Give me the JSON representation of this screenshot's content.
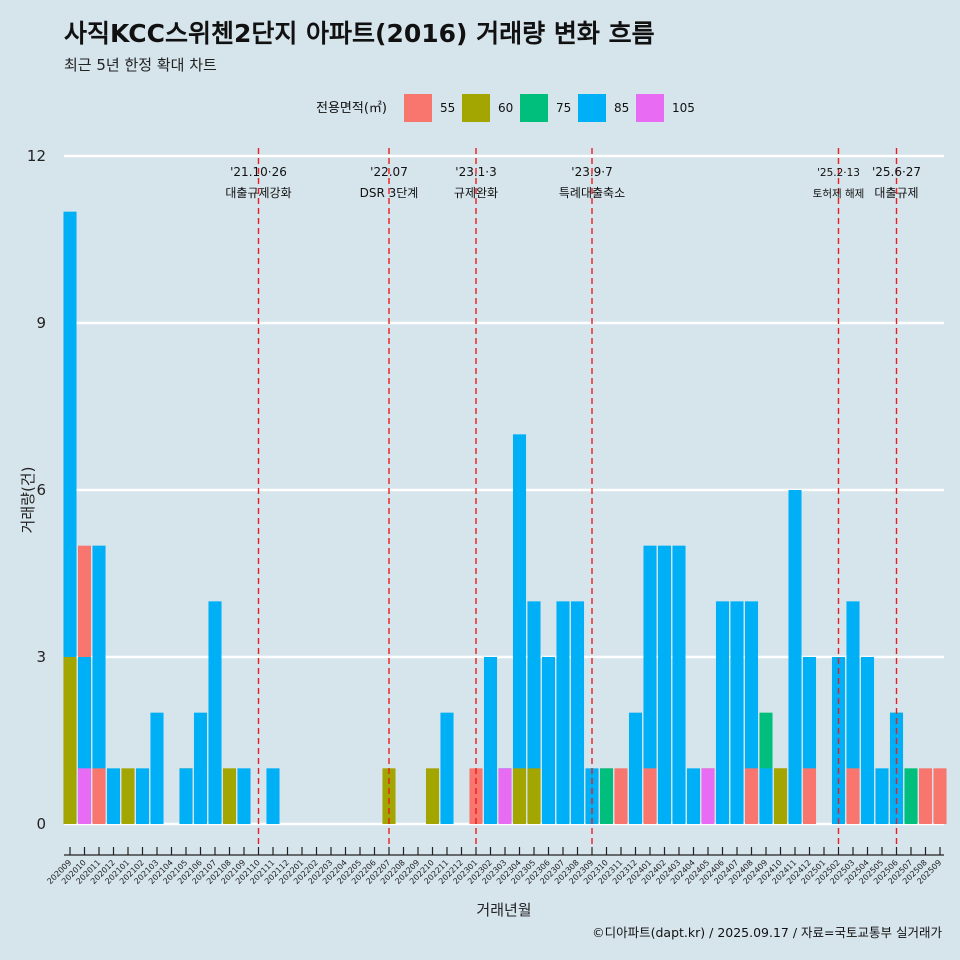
{
  "title": "사직KCC스위첸2단지 아파트(2016) 거래량 변화 흐름",
  "subtitle": "최근 5년 한정 확대 차트",
  "caption": "©디아파트(dapt.kr) / 2025.09.17 / 자료=국토교통부 실거래가",
  "chart_data": {
    "type": "bar",
    "xlabel": "거래년월",
    "ylabel": "거래량(건)",
    "ylim": [
      0,
      12
    ],
    "yticks": [
      0,
      3,
      6,
      9,
      12
    ],
    "grid": "horizontal",
    "legend_position": "top",
    "legend_title": "전용면적(㎡)",
    "series": [
      {
        "name": "55",
        "color": "#f8766d"
      },
      {
        "name": "60",
        "color": "#a3a500"
      },
      {
        "name": "75",
        "color": "#00bf7d"
      },
      {
        "name": "85",
        "color": "#00b0f6"
      },
      {
        "name": "105",
        "color": "#e76bf3"
      }
    ],
    "categories": [
      "202009",
      "202010",
      "202011",
      "202012",
      "202101",
      "202102",
      "202103",
      "202104",
      "202105",
      "202106",
      "202107",
      "202108",
      "202109",
      "202110",
      "202111",
      "202112",
      "202201",
      "202202",
      "202203",
      "202204",
      "202205",
      "202206",
      "202207",
      "202208",
      "202209",
      "202210",
      "202211",
      "202212",
      "202301",
      "202302",
      "202303",
      "202304",
      "202305",
      "202306",
      "202307",
      "202308",
      "202309",
      "202310",
      "202311",
      "202312",
      "202401",
      "202402",
      "202403",
      "202404",
      "202405",
      "202406",
      "202407",
      "202408",
      "202409",
      "202410",
      "202411",
      "202412",
      "202501",
      "202502",
      "202503",
      "202504",
      "202505",
      "202506",
      "202507",
      "202508",
      "202509"
    ],
    "values": {
      "202009": {
        "60": 3,
        "85": 11
      },
      "202010": {
        "55": 5,
        "85": 3,
        "105": 1
      },
      "202011": {
        "55": 1,
        "85": 5
      },
      "202012": {
        "85": 1
      },
      "202101": {
        "60": 1
      },
      "202102": {
        "85": 1
      },
      "202103": {
        "85": 2
      },
      "202105": {
        "60": 1,
        "85": 1
      },
      "202106": {
        "85": 2
      },
      "202107": {
        "85": 4
      },
      "202108": {
        "60": 1
      },
      "202109": {
        "85": 1
      },
      "202111": {
        "85": 1
      },
      "202207": {
        "60": 1
      },
      "202210": {
        "60": 1
      },
      "202211": {
        "85": 2
      },
      "202301": {
        "55": 1
      },
      "202302": {
        "85": 3
      },
      "202303": {
        "85": 1,
        "105": 1
      },
      "202304": {
        "60": 1,
        "85": 7
      },
      "202305": {
        "60": 1,
        "85": 4
      },
      "202306": {
        "85": 3
      },
      "202307": {
        "85": 4
      },
      "202308": {
        "85": 4
      },
      "202309": {
        "85": 1
      },
      "202310": {
        "55": 1,
        "75": 1
      },
      "202311": {
        "55": 1
      },
      "202312": {
        "85": 2
      },
      "202401": {
        "55": 1,
        "85": 5
      },
      "202402": {
        "85": 5
      },
      "202403": {
        "85": 5
      },
      "202404": {
        "85": 1
      },
      "202405": {
        "60": 1,
        "105": 1
      },
      "202406": {
        "85": 4
      },
      "202407": {
        "85": 4
      },
      "202408": {
        "55": 1,
        "85": 4
      },
      "202409": {
        "75": 2,
        "85": 1
      },
      "202410": {
        "55": 1,
        "60": 1
      },
      "202411": {
        "85": 6
      },
      "202412": {
        "55": 1,
        "85": 3
      },
      "202502": {
        "85": 3
      },
      "202503": {
        "55": 1,
        "85": 4
      },
      "202504": {
        "85": 3
      },
      "202505": {
        "85": 1
      },
      "202506": {
        "60": 2,
        "85": 2
      },
      "202507": {
        "75": 1
      },
      "202508": {
        "55": 1
      },
      "202509": {
        "55": 1
      }
    },
    "annotations": [
      {
        "x": "202110",
        "date": "'21.10·26",
        "label": "대출규제강화"
      },
      {
        "x": "202207",
        "date": "'22.07",
        "label": "DSR 3단계"
      },
      {
        "x": "202301",
        "date": "'23.1·3",
        "label": "규제완화"
      },
      {
        "x": "202309",
        "date": "'23.9·7",
        "label": "특례대출축소"
      },
      {
        "x": "202502",
        "date": "'25.2·13",
        "label": "토허제 해제"
      },
      {
        "x": "202506",
        "date": "'25.6·27",
        "label": "대출규제"
      }
    ]
  }
}
